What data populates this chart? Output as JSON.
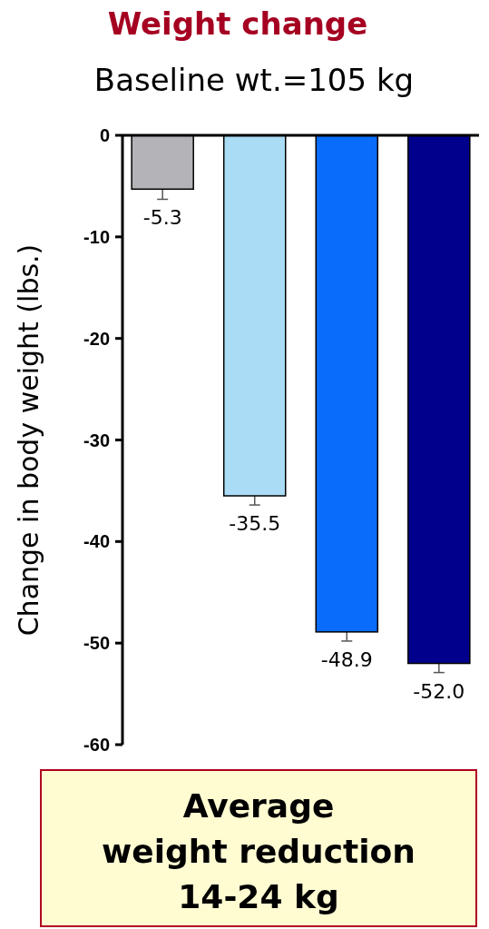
{
  "chart_data": {
    "type": "bar",
    "title": "Weight change",
    "subtitle": "Baseline wt.=105 kg",
    "ylabel": "Change in body weight (lbs.)",
    "categories": [
      null,
      null,
      null,
      null
    ],
    "values": [
      -5.3,
      -35.5,
      -48.9,
      -52.0
    ],
    "colors": [
      "#b4b4b8",
      "#aadcf5",
      "#0a6cfa",
      "#00008c"
    ],
    "errors": [
      1,
      0.9,
      0.9,
      0.9
    ],
    "value_labels": [
      "-5.3",
      "-35.5",
      "-48.9",
      "-52.0"
    ],
    "ylim": [
      -60,
      0
    ],
    "yticks": [
      0,
      -10,
      -20,
      -30,
      -40,
      -50,
      -60
    ],
    "grid": false,
    "annotations": [
      "Average\nweight reduction\n14-24 kg"
    ]
  }
}
